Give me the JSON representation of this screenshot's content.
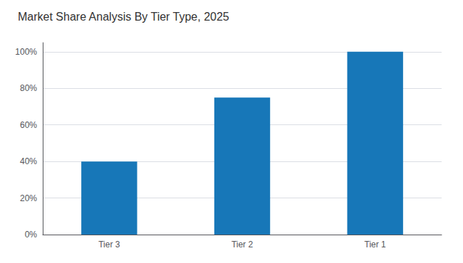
{
  "chart_data": {
    "type": "bar",
    "title": "Market Share Analysis By Tier Type, 2025",
    "categories": [
      "Tier 3",
      "Tier 2",
      "Tier 1"
    ],
    "values": [
      40,
      75,
      100
    ],
    "color": "#1777b8",
    "ylim": [
      0,
      105
    ],
    "yticks": [
      {
        "value": 0,
        "label": "0%"
      },
      {
        "value": 20,
        "label": "20%"
      },
      {
        "value": 40,
        "label": "40%"
      },
      {
        "value": 60,
        "label": "60%"
      },
      {
        "value": 80,
        "label": "80%"
      },
      {
        "value": 100,
        "label": "100%"
      }
    ],
    "grid": true
  }
}
